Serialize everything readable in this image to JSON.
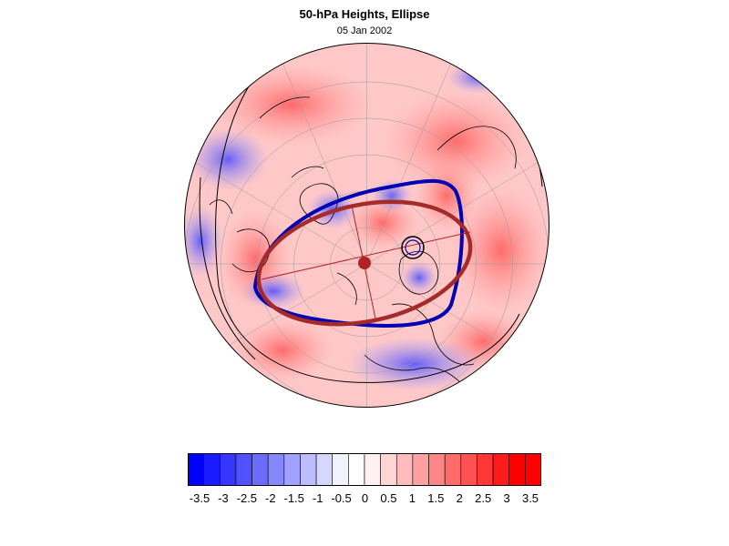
{
  "title": "50-hPa Heights, Ellipse",
  "date": "05 Jan 2002",
  "map": {
    "projection": "polar stereographic, North Pole",
    "fill": "red/blue anomaly shading",
    "ellipses": [
      {
        "name": "",
        "color": "#0000b4"
      },
      {
        "name": "",
        "color": "#a52a2a"
      }
    ],
    "centroid_color": "#b22222"
  },
  "colorbar": {
    "labels": [
      "-3.5",
      "-3",
      "-2.5",
      "-2",
      "-1.5",
      "-1",
      "-0.5",
      "0",
      "0.5",
      "1",
      "1.5",
      "2",
      "2.5",
      "3",
      "3.5"
    ],
    "colors": [
      "#0000ff",
      "#1b1bff",
      "#3636ff",
      "#5151ff",
      "#6b6bff",
      "#8686ff",
      "#a1a1ff",
      "#bcbcff",
      "#d6d6ff",
      "#f1f1ff",
      "#ffffff",
      "#fff1f1",
      "#ffd6d6",
      "#ffbcbc",
      "#ffa1a1",
      "#ff8686",
      "#ff6b6b",
      "#ff5151",
      "#ff3636",
      "#ff1b1b",
      "#ff0000",
      "#ff0000"
    ]
  }
}
